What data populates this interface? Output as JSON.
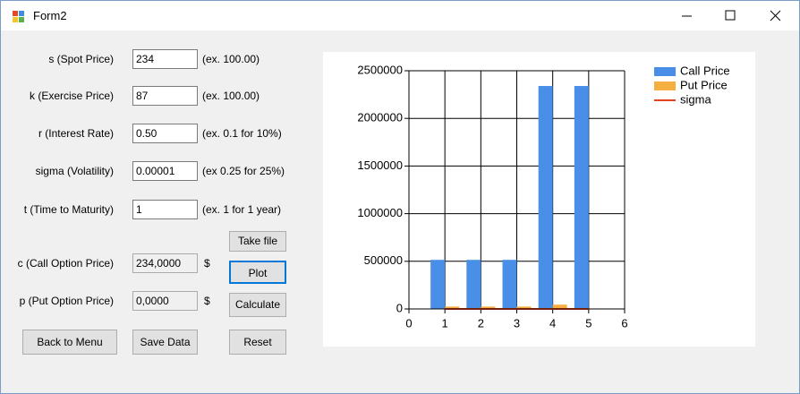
{
  "window": {
    "title": "Form2"
  },
  "fields": [
    {
      "label": "s (Spot Price)",
      "value": "234",
      "hint": "(ex. 100.00)"
    },
    {
      "label": "k (Exercise Price)",
      "value": "87",
      "hint": "(ex. 100.00)"
    },
    {
      "label": "r (Interest Rate)",
      "value": "0.50",
      "hint": "(ex. 0.1 for 10%)"
    },
    {
      "label": "sigma (Volatility)",
      "value": "0.00001",
      "hint": "(ex 0.25 for 25%)"
    },
    {
      "label": "t (Time to Maturity)",
      "value": "1",
      "hint": "(ex. 1 for 1 year)"
    }
  ],
  "outputs": [
    {
      "label": "c (Call Option Price)",
      "value": "234,0000",
      "unit": "$"
    },
    {
      "label": "p (Put Option Price)",
      "value": "0,0000",
      "unit": "$"
    }
  ],
  "buttons": {
    "take_file": "Take file",
    "plot": "Plot",
    "calculate": "Calculate",
    "back": "Back to Menu",
    "save": "Save Data",
    "reset": "Reset"
  },
  "chart_data": {
    "type": "bar",
    "x": [
      1,
      2,
      3,
      4,
      5
    ],
    "xlim": [
      0,
      6
    ],
    "xticks": [
      0,
      1,
      2,
      3,
      4,
      5,
      6
    ],
    "ylim": [
      0,
      2500000
    ],
    "yticks": [
      0,
      500000,
      1000000,
      1500000,
      2000000,
      2500000
    ],
    "grid": true,
    "legend": "top-right",
    "series": [
      {
        "name": "Call Price",
        "color": "#4a8fe7",
        "values": [
          515000,
          515000,
          515000,
          2340000,
          2340000
        ]
      },
      {
        "name": "Put Price",
        "color": "#f5b041",
        "values": [
          25000,
          25000,
          25000,
          45000,
          0
        ]
      },
      {
        "name": "sigma",
        "color": "#e8401c",
        "type": "line",
        "values": [
          1e-05,
          1e-05,
          1e-05,
          1e-05,
          1e-05
        ]
      }
    ]
  }
}
